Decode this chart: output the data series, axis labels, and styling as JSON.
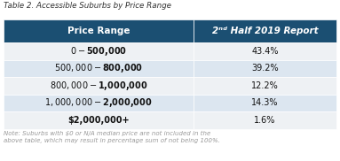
{
  "title": "Table 2. Accessible Suburbs by Price Range",
  "header": [
    "Price Range",
    "2nd Half 2019 Report"
  ],
  "rows": [
    [
      "$0-$500,000",
      "43.4%"
    ],
    [
      "$500,000-$800,000",
      "39.2%"
    ],
    [
      "$800,000-$1,000,000",
      "12.2%"
    ],
    [
      "$1,000,000-$2,000,000",
      "14.3%"
    ],
    [
      "$2,000,000+",
      "1.6%"
    ]
  ],
  "note": "Note: Suburbs with $0 or N/A median price are not included in the\nabove table, which may result in percentage sum of not being 100%.",
  "header_bg": "#1b4f72",
  "header_fg": "#ffffff",
  "row_bg_odd": "#eef1f4",
  "row_bg_even": "#dce6f0",
  "title_color": "#333333",
  "note_color": "#999999",
  "table_bg": "#ffffff",
  "col_split": 0.57
}
